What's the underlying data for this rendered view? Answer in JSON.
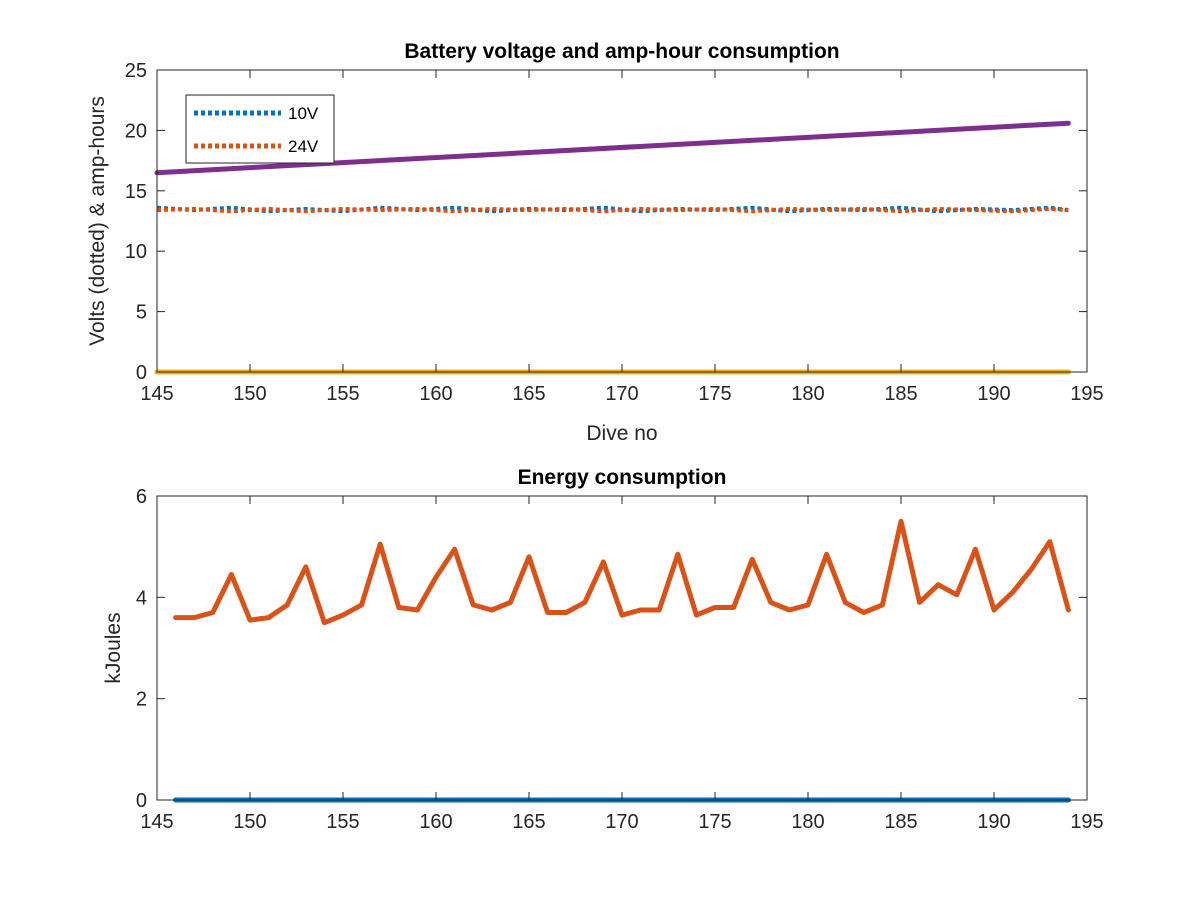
{
  "chart_data": [
    {
      "type": "line",
      "title": "Battery voltage and amp-hour consumption",
      "xlabel": "Dive no",
      "ylabel": "Volts (dotted) & amp-hours",
      "xlim": [
        145,
        195
      ],
      "ylim": [
        0,
        25
      ],
      "xticks": [
        "145",
        "150",
        "155",
        "160",
        "165",
        "170",
        "175",
        "180",
        "185",
        "190",
        "195"
      ],
      "yticks": [
        "0",
        "5",
        "10",
        "15",
        "20",
        "25"
      ],
      "grid": false,
      "legend_position": "top-left",
      "series": [
        {
          "name": "10V",
          "style": "dotted",
          "color": "#0072BD",
          "x": [
            145,
            147,
            149,
            151,
            153,
            155,
            157,
            159,
            161,
            163,
            165,
            167,
            169,
            171,
            173,
            175,
            177,
            179,
            181,
            183,
            185,
            187,
            189,
            191,
            193,
            194
          ],
          "y": [
            13.6,
            13.4,
            13.6,
            13.3,
            13.5,
            13.3,
            13.6,
            13.4,
            13.6,
            13.3,
            13.5,
            13.4,
            13.6,
            13.3,
            13.5,
            13.4,
            13.6,
            13.3,
            13.5,
            13.4,
            13.6,
            13.3,
            13.5,
            13.4,
            13.6,
            13.4
          ]
        },
        {
          "name": "24V",
          "style": "dotted",
          "color": "#D95319",
          "x": [
            145,
            147,
            149,
            151,
            153,
            155,
            157,
            159,
            161,
            163,
            165,
            167,
            169,
            171,
            173,
            175,
            177,
            179,
            181,
            183,
            185,
            187,
            189,
            191,
            193,
            194
          ],
          "y": [
            13.4,
            13.5,
            13.3,
            13.5,
            13.3,
            13.5,
            13.4,
            13.5,
            13.3,
            13.5,
            13.4,
            13.5,
            13.3,
            13.5,
            13.4,
            13.5,
            13.3,
            13.5,
            13.4,
            13.5,
            13.3,
            13.5,
            13.4,
            13.3,
            13.5,
            13.4
          ]
        },
        {
          "style": "solid",
          "color": "#7E2F8E",
          "x": [
            145,
            194
          ],
          "y": [
            16.5,
            20.6
          ]
        },
        {
          "style": "solid",
          "color": "#EDB120",
          "x": [
            145,
            194
          ],
          "y": [
            0,
            0
          ]
        }
      ]
    },
    {
      "type": "line",
      "title": "Energy consumption",
      "xlabel": "",
      "ylabel": "kJoules",
      "xlim": [
        145,
        195
      ],
      "ylim": [
        0,
        6
      ],
      "xticks": [
        "145",
        "150",
        "155",
        "160",
        "165",
        "170",
        "175",
        "180",
        "185",
        "190",
        "195"
      ],
      "yticks": [
        "0",
        "2",
        "4",
        "6"
      ],
      "grid": false,
      "series": [
        {
          "style": "solid",
          "color": "#D95319",
          "x": [
            146,
            147,
            148,
            149,
            150,
            151,
            152,
            153,
            154,
            155,
            156,
            157,
            158,
            159,
            160,
            161,
            162,
            163,
            164,
            165,
            166,
            167,
            168,
            169,
            170,
            171,
            172,
            173,
            174,
            175,
            176,
            177,
            178,
            179,
            180,
            181,
            182,
            183,
            184,
            185,
            186,
            187,
            188,
            189,
            190,
            191,
            192,
            193,
            194
          ],
          "y": [
            3.6,
            3.6,
            3.7,
            4.45,
            3.55,
            3.6,
            3.85,
            4.6,
            3.5,
            3.65,
            3.85,
            5.05,
            3.8,
            3.75,
            4.4,
            4.95,
            3.85,
            3.75,
            3.9,
            4.8,
            3.7,
            3.7,
            3.9,
            4.7,
            3.65,
            3.75,
            3.75,
            4.85,
            3.65,
            3.8,
            3.8,
            4.75,
            3.9,
            3.75,
            3.85,
            4.85,
            3.9,
            3.7,
            3.85,
            5.5,
            3.9,
            4.25,
            4.05,
            4.95,
            3.75,
            4.1,
            4.55,
            5.1,
            3.75
          ]
        },
        {
          "style": "solid",
          "color": "#0072BD",
          "x": [
            146,
            194
          ],
          "y": [
            0,
            0
          ]
        }
      ]
    }
  ]
}
